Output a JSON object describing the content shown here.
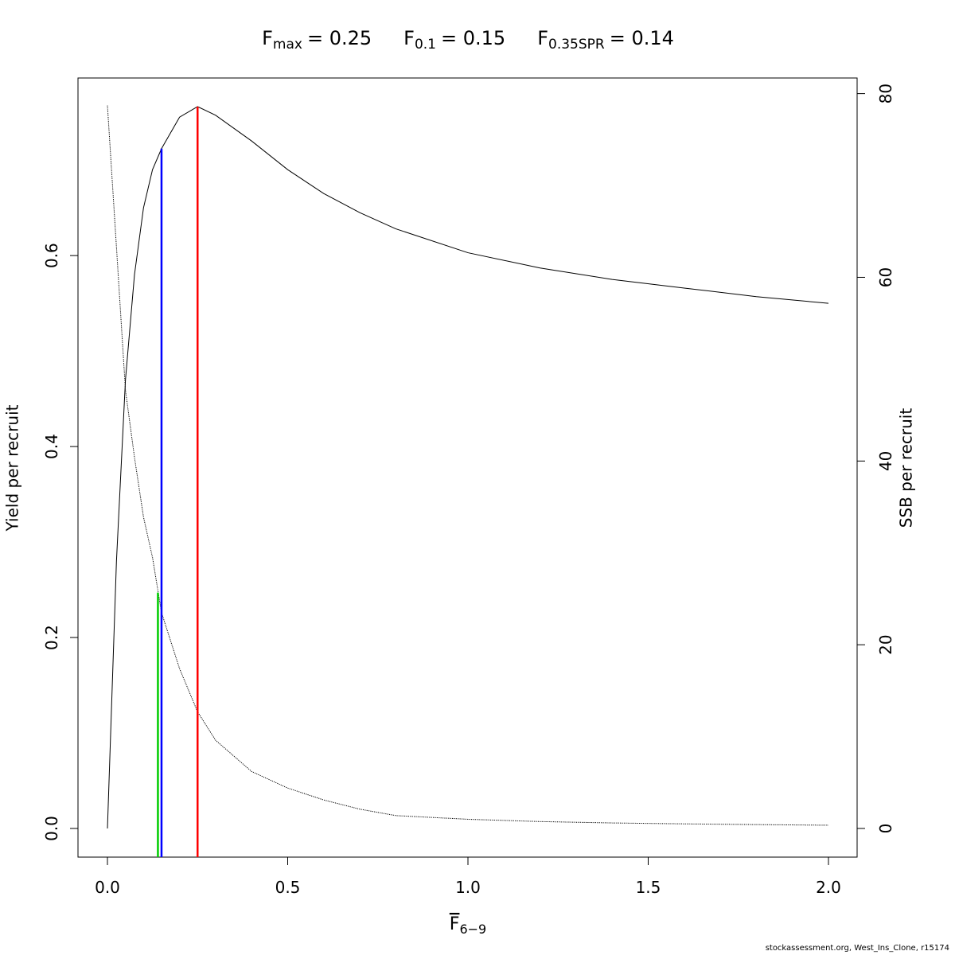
{
  "chart_data": {
    "type": "line",
    "title_parts": [
      {
        "symbol": "F",
        "subscript": "max",
        "label": "= 0.25"
      },
      {
        "symbol": "F",
        "subscript": "0.1",
        "label": "= 0.15"
      },
      {
        "symbol": "F",
        "subscript": "0.35SPR",
        "label": "= 0.14"
      }
    ],
    "x_label": {
      "symbol": "F",
      "subscript": "6−9"
    },
    "y_label": "Yield per recruit",
    "y2_label": "SSB per recruit",
    "footer": "stockassessment.org, West_Ins_Clone, r15174",
    "x": [
      0,
      0.025,
      0.05,
      0.075,
      0.1,
      0.125,
      0.15,
      0.2,
      0.25,
      0.3,
      0.4,
      0.5,
      0.6,
      0.7,
      0.8,
      1.0,
      1.2,
      1.4,
      1.6,
      1.8,
      2.0
    ],
    "series": [
      {
        "name": "Yield per recruit",
        "color": "#000000",
        "dash": "solid",
        "values": [
          0,
          0.28,
          0.47,
          0.58,
          0.65,
          0.69,
          0.712,
          0.745,
          0.756,
          0.747,
          0.72,
          0.69,
          0.665,
          0.645,
          0.628,
          0.603,
          0.587,
          0.575,
          0.566,
          0.557,
          0.55
        ]
      },
      {
        "name": "SSB per recruit",
        "color": "#000000",
        "dash": "dotted",
        "axis": "y2",
        "values": [
          78.7,
          63.3,
          47.7,
          40.4,
          33.9,
          29.5,
          23.5,
          17.4,
          12.7,
          9.6,
          6.2,
          4.4,
          3.1,
          2.1,
          1.4,
          1.0,
          0.75,
          0.6,
          0.5,
          0.42,
          0.35
        ]
      }
    ],
    "reference_lines": [
      {
        "x": 0.25,
        "y": 0.756,
        "color": "#ff0000"
      },
      {
        "x": 0.15,
        "y": 0.712,
        "color": "#0000ff"
      },
      {
        "x": 0.14,
        "y": 0.247,
        "color": "#00cd00"
      }
    ],
    "xlim": [
      -0.0817,
      2.0795
    ],
    "xticks": [
      {
        "value": 0,
        "label": "0.0"
      },
      0.5,
      {
        "value": 1,
        "label": "1.0"
      },
      1.5,
      {
        "value": 2,
        "label": "2.0"
      }
    ],
    "ylim": [
      -0.03,
      0.786
    ],
    "yticks": [
      {
        "value": 0,
        "label": "0.0"
      },
      0.2,
      0.4,
      0.6
    ],
    "y2lim": [
      -3.12,
      81.7
    ],
    "y2ticks": [
      0,
      20,
      40,
      60,
      80
    ]
  }
}
